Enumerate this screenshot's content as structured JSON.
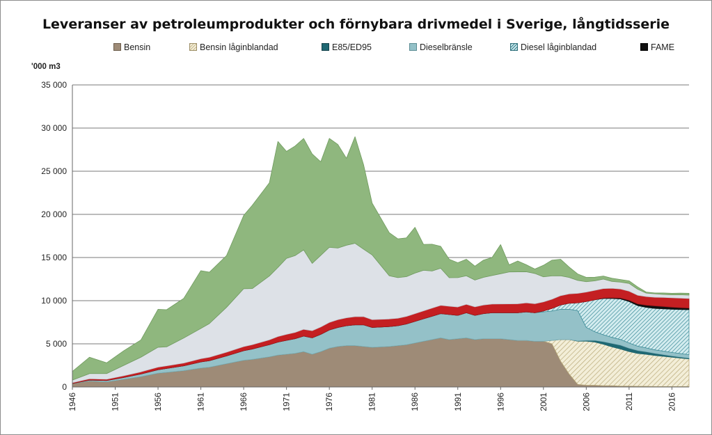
{
  "chart_data": {
    "type": "area",
    "stacked": true,
    "title": "Leveranser av petroleumprodukter och förnybara drivmedel i Sverige, långtidsserie",
    "ylabel": "'000 m3",
    "xlabel": "",
    "ylim": [
      0,
      35000
    ],
    "y_ticks": [
      "0",
      "5 000",
      "10 000",
      "15 000",
      "20 000",
      "25 000",
      "30 000",
      "35 000"
    ],
    "x_ticks": [
      "1946",
      "1951",
      "1956",
      "1961",
      "1966",
      "1971",
      "1976",
      "1981",
      "1986",
      "1991",
      "1996",
      "2001",
      "2006",
      "2011",
      "2016"
    ],
    "grid": true,
    "legend_position": "top",
    "x": [
      1946,
      1948,
      1950,
      1952,
      1954,
      1956,
      1957,
      1959,
      1961,
      1962,
      1964,
      1966,
      1967,
      1969,
      1970,
      1971,
      1972,
      1973,
      1974,
      1975,
      1976,
      1977,
      1978,
      1979,
      1980,
      1981,
      1983,
      1984,
      1985,
      1986,
      1987,
      1988,
      1989,
      1990,
      1991,
      1992,
      1993,
      1994,
      1995,
      1996,
      1997,
      1998,
      1999,
      2000,
      2001,
      2002,
      2003,
      2004,
      2005,
      2006,
      2007,
      2008,
      2009,
      2010,
      2011,
      2012,
      2013,
      2014,
      2015,
      2016,
      2017,
      2018
    ],
    "legend": [
      "Bensin",
      "Bensin låginblandad",
      "E85/ED95",
      "Dieselbränsle",
      "Diesel låginblandad",
      "FAME"
    ],
    "series": [
      {
        "name": "Bensin",
        "color": "#9e8b77",
        "values": [
          400,
          700,
          600,
          900,
          1200,
          1600,
          1700,
          1900,
          2200,
          2300,
          2700,
          3100,
          3200,
          3500,
          3700,
          3800,
          3900,
          4100,
          3800,
          4100,
          4500,
          4700,
          4800,
          4800,
          4700,
          4600,
          4700,
          4800,
          4900,
          5100,
          5300,
          5500,
          5700,
          5500,
          5600,
          5700,
          5500,
          5600,
          5600,
          5600,
          5500,
          5400,
          5400,
          5300,
          5300,
          5000,
          3000,
          1500,
          300,
          200,
          200,
          150,
          150,
          100,
          100,
          80,
          80,
          50,
          50,
          50,
          50,
          50
        ]
      },
      {
        "name": "Bensin låginblandad",
        "color": "#e9e2c4",
        "pattern": "hatch",
        "values": [
          0,
          0,
          0,
          0,
          0,
          0,
          0,
          0,
          0,
          0,
          0,
          0,
          0,
          0,
          0,
          0,
          0,
          0,
          0,
          0,
          0,
          0,
          0,
          0,
          0,
          0,
          0,
          0,
          0,
          0,
          0,
          0,
          0,
          0,
          0,
          0,
          0,
          0,
          0,
          0,
          0,
          0,
          0,
          0,
          0,
          400,
          2500,
          4000,
          5000,
          5100,
          5000,
          4800,
          4500,
          4300,
          4000,
          3800,
          3700,
          3600,
          3500,
          3400,
          3300,
          3200
        ]
      },
      {
        "name": "E85/ED95",
        "color": "#1f6873",
        "values": [
          0,
          0,
          0,
          0,
          0,
          0,
          0,
          0,
          0,
          0,
          0,
          0,
          0,
          0,
          0,
          0,
          0,
          0,
          0,
          0,
          0,
          0,
          0,
          0,
          0,
          0,
          0,
          0,
          0,
          0,
          0,
          0,
          0,
          0,
          0,
          0,
          0,
          0,
          0,
          0,
          0,
          0,
          0,
          0,
          0,
          0,
          0,
          0,
          50,
          100,
          200,
          300,
          400,
          450,
          400,
          350,
          300,
          250,
          200,
          150,
          120,
          100
        ]
      },
      {
        "name": "Dieselbränsle",
        "color": "#94c1c8",
        "values": [
          0,
          100,
          150,
          200,
          300,
          400,
          450,
          550,
          700,
          750,
          900,
          1100,
          1200,
          1400,
          1500,
          1600,
          1700,
          1800,
          1900,
          2000,
          2100,
          2200,
          2300,
          2400,
          2500,
          2300,
          2300,
          2300,
          2400,
          2500,
          2600,
          2700,
          2800,
          2900,
          2700,
          2900,
          2800,
          2900,
          3000,
          3000,
          3100,
          3200,
          3300,
          3300,
          3400,
          3400,
          3500,
          3500,
          3500,
          1500,
          1000,
          800,
          700,
          650,
          600,
          500,
          450,
          400,
          400,
          400,
          400,
          400
        ]
      },
      {
        "name": "Diesel låginblandad",
        "color": "#86c4cc",
        "pattern": "hatch",
        "values": [
          0,
          0,
          0,
          0,
          0,
          0,
          0,
          0,
          0,
          0,
          0,
          0,
          0,
          0,
          0,
          0,
          0,
          0,
          0,
          0,
          0,
          0,
          0,
          0,
          0,
          0,
          0,
          0,
          0,
          0,
          0,
          0,
          0,
          0,
          0,
          0,
          0,
          0,
          0,
          0,
          0,
          0,
          0,
          0,
          100,
          300,
          500,
          700,
          900,
          3000,
          3700,
          4200,
          4500,
          4700,
          4800,
          4700,
          4700,
          4800,
          4900,
          5000,
          5100,
          5200
        ]
      },
      {
        "name": "FAME",
        "color": "#111111",
        "values": [
          0,
          0,
          0,
          0,
          0,
          0,
          0,
          0,
          0,
          0,
          0,
          0,
          0,
          0,
          0,
          0,
          0,
          0,
          0,
          0,
          0,
          0,
          0,
          0,
          0,
          0,
          0,
          0,
          0,
          0,
          0,
          0,
          0,
          0,
          0,
          0,
          0,
          0,
          0,
          0,
          0,
          0,
          0,
          0,
          0,
          0,
          0,
          0,
          0,
          0,
          0,
          50,
          80,
          100,
          150,
          200,
          250,
          300,
          280,
          250,
          220,
          200
        ]
      },
      {
        "color": "#c41f22",
        "values": [
          100,
          150,
          150,
          200,
          250,
          300,
          300,
          320,
          380,
          400,
          430,
          480,
          500,
          560,
          650,
          700,
          720,
          780,
          820,
          850,
          880,
          900,
          920,
          950,
          960,
          900,
          880,
          870,
          880,
          900,
          920,
          940,
          960,
          960,
          970,
          980,
          990,
          1000,
          1010,
          1020,
          1030,
          1040,
          1050,
          1050,
          1060,
          1070,
          1080,
          1090,
          1100,
          1100,
          1100,
          1100,
          1100,
          1050,
          1050,
          1000,
          1000,
          1000,
          1050,
          1080,
          1100,
          1100
        ]
      },
      {
        "color": "#dde1e7",
        "values": [
          300,
          600,
          650,
          1200,
          1700,
          2300,
          2200,
          2900,
          3500,
          3900,
          5200,
          6700,
          6500,
          7400,
          8000,
          8800,
          8900,
          9200,
          7800,
          8300,
          8700,
          8300,
          8400,
          8500,
          7800,
          7500,
          5000,
          4700,
          4600,
          4700,
          4700,
          4300,
          4300,
          3300,
          3400,
          3300,
          3100,
          3200,
          3300,
          3500,
          3700,
          3700,
          3600,
          3500,
          2900,
          2700,
          2300,
          1900,
          1500,
          1200,
          1100,
          1100,
          800,
          800,
          900,
          700,
          400,
          400,
          350,
          350,
          400,
          400
        ]
      },
      {
        "color": "#8fb77e",
        "values": [
          1000,
          1900,
          1250,
          1700,
          2000,
          4400,
          4300,
          4600,
          6700,
          5950,
          6000,
          8500,
          9650,
          10800,
          14600,
          12400,
          12700,
          12920,
          12680,
          10850,
          12620,
          12000,
          10080,
          12350,
          9800,
          6000,
          5000,
          4500,
          4500,
          5300,
          3000,
          3100,
          2540,
          2140,
          1730,
          1920,
          1610,
          2000,
          2090,
          3380,
          820,
          1260,
          810,
          520,
          1340,
          1830,
          1920,
          1210,
          750,
          500,
          420,
          350,
          370,
          300,
          300,
          270,
          120,
          100,
          170,
          170,
          180,
          200
        ]
      }
    ]
  }
}
